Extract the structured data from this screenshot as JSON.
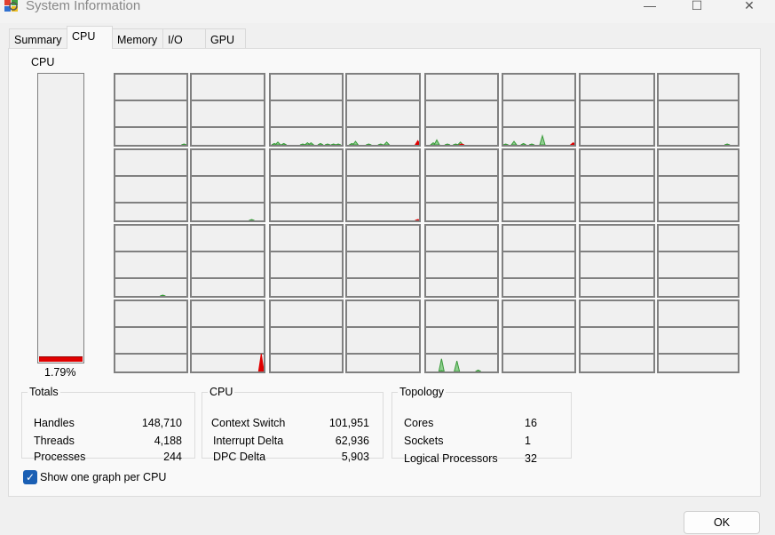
{
  "window": {
    "title": "System Information",
    "minimize_icon": "minimize-icon",
    "maximize_icon": "maximize-icon",
    "close_icon": "close-icon"
  },
  "tabs": [
    {
      "label": "Summary"
    },
    {
      "label": "CPU",
      "active": true
    },
    {
      "label": "Memory"
    },
    {
      "label": "I/O"
    },
    {
      "label": "GPU"
    }
  ],
  "cpu": {
    "label": "CPU",
    "usage_percent": 1.79,
    "usage_text": "1.79%"
  },
  "colors": {
    "user": "#3a9a3a",
    "user_fill": "#8fcf8f",
    "kernel": "#e00000",
    "grid": "#808080"
  },
  "cpu_graphs": [
    {
      "user": [
        [
          58,
          1
        ]
      ]
    },
    {
      "user": []
    },
    {
      "user": [
        [
          3,
          2
        ],
        [
          6,
          4
        ],
        [
          11,
          2
        ],
        [
          27,
          1
        ],
        [
          31,
          3
        ],
        [
          34,
          3
        ],
        [
          42,
          2
        ],
        [
          48,
          1
        ],
        [
          53,
          1
        ],
        [
          57,
          1
        ]
      ]
    },
    {
      "user": [
        [
          4,
          2
        ],
        [
          7,
          5
        ],
        [
          18,
          1
        ],
        [
          28,
          1
        ],
        [
          33,
          4
        ]
      ],
      "kernel": [
        [
          59,
          6
        ]
      ]
    },
    {
      "user": [
        [
          6,
          3
        ],
        [
          9,
          7
        ],
        [
          18,
          1
        ],
        [
          25,
          1
        ],
        [
          29,
          4
        ]
      ],
      "kernel": [
        [
          30,
          1
        ]
      ]
    },
    {
      "user": [
        [
          2,
          1
        ],
        [
          9,
          5
        ],
        [
          17,
          2
        ],
        [
          24,
          1
        ],
        [
          33,
          13
        ]
      ],
      "kernel": [
        [
          59,
          3
        ]
      ]
    },
    {
      "user": []
    },
    {
      "user": [
        [
          52,
          1
        ]
      ]
    },
    {
      "user": []
    },
    {
      "user": [
        [
          50,
          1
        ]
      ]
    },
    {
      "user": []
    },
    {
      "kernel": [
        [
          59,
          1
        ]
      ]
    },
    {
      "user": []
    },
    {
      "user": []
    },
    {
      "user": []
    },
    {
      "user": []
    },
    {
      "user": [
        [
          40,
          1
        ]
      ]
    },
    {
      "user": []
    },
    {
      "user": []
    },
    {
      "user": []
    },
    {
      "user": []
    },
    {
      "user": []
    },
    {
      "user": []
    },
    {
      "user": []
    },
    {
      "user": []
    },
    {
      "kernel": [
        [
          58,
          25
        ]
      ]
    },
    {
      "user": []
    },
    {
      "user": []
    },
    {
      "user": [
        [
          13,
          18
        ],
        [
          13,
          0
        ],
        [
          26,
          15
        ],
        [
          44,
          2
        ]
      ]
    },
    {
      "user": []
    },
    {
      "user": []
    },
    {
      "user": []
    }
  ],
  "totals": {
    "title": "Totals",
    "rows": [
      {
        "label": "Handles",
        "value": "148,710"
      },
      {
        "label": "Threads",
        "value": "4,188"
      },
      {
        "label": "Processes",
        "value": "244"
      }
    ]
  },
  "cpu_stats": {
    "title": "CPU",
    "rows": [
      {
        "label": "Context Switch",
        "value": "101,951"
      },
      {
        "label": "Interrupt Delta",
        "value": "62,936"
      },
      {
        "label": "DPC Delta",
        "value": "5,903"
      }
    ]
  },
  "topology": {
    "title": "Topology",
    "rows": [
      {
        "label": "Cores",
        "value": "16"
      },
      {
        "label": "Sockets",
        "value": "1"
      },
      {
        "label": "Logical Processors",
        "value": "32"
      }
    ]
  },
  "show_one_graph": {
    "label": "Show one graph per CPU",
    "checked": true
  },
  "ok_label": "OK"
}
